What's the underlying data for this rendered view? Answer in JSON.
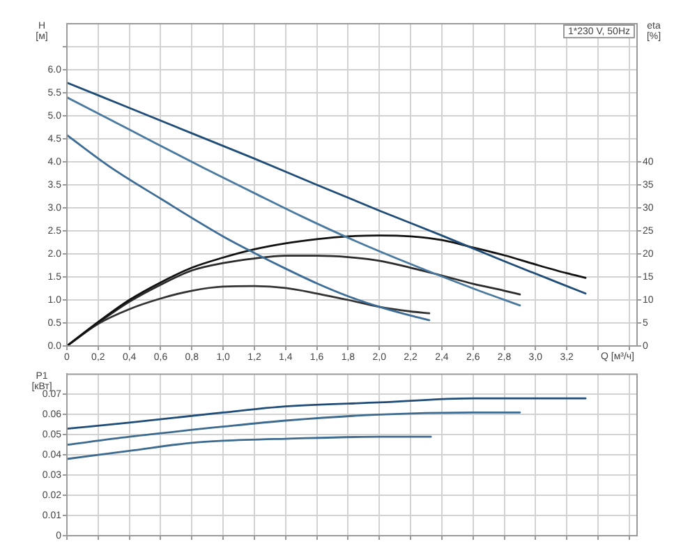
{
  "chart_data": [
    {
      "type": "line",
      "xlabel": "Q [м³/ч]",
      "ylabel": "H [м]",
      "y2label": "eta [%]",
      "annotations": [
        "1*230 V, 50Hz"
      ],
      "xlim": [
        0,
        3.65
      ],
      "xticks": [
        0,
        {
          "value": 0.2,
          "label": "0,2"
        },
        {
          "value": 0.4,
          "label": "0,4"
        },
        {
          "value": 0.6,
          "label": "0,6"
        },
        {
          "value": 0.8,
          "label": "0,8"
        },
        {
          "value": 1,
          "label": "1,0"
        },
        {
          "value": 1.2,
          "label": "1,2"
        },
        {
          "value": 1.4,
          "label": "1,4"
        },
        {
          "value": 1.6,
          "label": "1,6"
        },
        {
          "value": 1.8,
          "label": "1,8"
        },
        {
          "value": 2,
          "label": "2,0"
        },
        {
          "value": 2.2,
          "label": "2,2"
        },
        {
          "value": 2.4,
          "label": "2,4"
        },
        {
          "value": 2.6,
          "label": "2,6"
        },
        {
          "value": 2.8,
          "label": "2,8"
        },
        {
          "value": 3,
          "label": "3,0"
        },
        {
          "value": 3.2,
          "label": "3,2"
        },
        {
          "value": 3.4,
          "label": null
        },
        {
          "value": 3.6,
          "label": null
        }
      ],
      "ylim": [
        0,
        7
      ],
      "yticks": [
        {
          "value": 0,
          "label": "0.0"
        },
        {
          "value": 0.5,
          "label": "0.5"
        },
        {
          "value": 1,
          "label": "1.0"
        },
        {
          "value": 1.5,
          "label": "1.5"
        },
        {
          "value": 2,
          "label": "2.0"
        },
        {
          "value": 2.5,
          "label": "2.5"
        },
        {
          "value": 3,
          "label": "3.0"
        },
        {
          "value": 3.5,
          "label": "3.5"
        },
        {
          "value": 4,
          "label": "4.0"
        },
        {
          "value": 4.5,
          "label": "4.5"
        },
        {
          "value": 5,
          "label": "5.0"
        },
        {
          "value": 5.5,
          "label": "5.5"
        },
        {
          "value": 6,
          "label": "6.0"
        },
        {
          "value": 6.5,
          "label": null
        }
      ],
      "y2lim": [
        0,
        70
      ],
      "y2ticks": [
        0,
        5,
        10,
        15,
        20,
        25,
        30,
        35,
        40
      ],
      "grid": true,
      "series": [
        {
          "color": "#1f4d78",
          "x": [
            0,
            0.4,
            0.8,
            1.2,
            1.6,
            2.0,
            2.4,
            2.8,
            3.32
          ],
          "values": [
            5.72,
            5.17,
            4.62,
            4.07,
            3.5,
            2.94,
            2.4,
            1.84,
            1.14
          ]
        },
        {
          "color": "#4a7aa0",
          "x": [
            0,
            0.4,
            0.88,
            1.2,
            1.5,
            1.8,
            2.2,
            2.6,
            2.9
          ],
          "values": [
            5.4,
            4.7,
            3.86,
            3.32,
            2.82,
            2.35,
            1.78,
            1.25,
            0.88
          ]
        },
        {
          "color": "#3d6d96",
          "x": [
            0,
            0.28,
            0.6,
            1.0,
            1.2,
            1.4,
            1.6,
            1.8,
            2.0,
            2.2,
            2.32
          ],
          "values": [
            4.58,
            3.88,
            3.2,
            2.38,
            2.02,
            1.68,
            1.36,
            1.08,
            0.85,
            0.66,
            0.56
          ]
        },
        {
          "color": "#111111",
          "axis": "y2",
          "x": [
            0,
            0.2,
            0.4,
            0.6,
            0.8,
            1.0,
            1.2,
            1.4,
            1.6,
            1.8,
            2.0,
            2.2,
            2.4,
            2.6,
            2.8,
            3.0,
            3.2,
            3.32
          ],
          "values": [
            0,
            5.2,
            10.0,
            13.8,
            17.0,
            19.2,
            21.0,
            22.3,
            23.2,
            23.8,
            24.0,
            23.8,
            23.0,
            21.4,
            19.7,
            17.7,
            15.8,
            14.8
          ]
        },
        {
          "color": "#2b2b2b",
          "axis": "y2",
          "x": [
            0,
            0.2,
            0.4,
            0.6,
            0.8,
            1.0,
            1.2,
            1.4,
            1.6,
            1.8,
            2.0,
            2.2,
            2.4,
            2.6,
            2.8,
            2.9
          ],
          "values": [
            0,
            5.0,
            9.6,
            13.3,
            16.4,
            18.0,
            19.0,
            19.6,
            19.6,
            19.3,
            18.5,
            17.0,
            15.3,
            13.5,
            12.0,
            11.2
          ]
        },
        {
          "color": "#333333",
          "axis": "y2",
          "x": [
            0,
            0.2,
            0.4,
            0.6,
            0.8,
            1.0,
            1.2,
            1.4,
            1.6,
            1.8,
            2.0,
            2.2,
            2.32
          ],
          "values": [
            0,
            4.8,
            8.0,
            10.3,
            12.0,
            12.9,
            13.0,
            12.6,
            11.4,
            10.0,
            8.5,
            7.5,
            7.1
          ]
        }
      ]
    },
    {
      "type": "line",
      "ylabel": "P1 [кВт]",
      "tick_labels": "y",
      "xlim": [
        0,
        3.65
      ],
      "xticks": [
        0,
        0.2,
        0.4,
        0.6,
        0.8,
        1,
        1.2,
        1.4,
        1.6,
        1.8,
        2,
        2.2,
        2.4,
        2.6,
        2.8,
        3,
        3.2,
        3.4,
        3.6
      ],
      "ylim": [
        0,
        0.08
      ],
      "yticks": [
        0,
        0.01,
        0.02,
        0.03,
        0.04,
        0.05,
        0.06,
        0.07
      ],
      "grid": true,
      "series": [
        {
          "color": "#1f4d78",
          "x": [
            0,
            0.4,
            1.0,
            1.4,
            2.0,
            2.6,
            3.0,
            3.32
          ],
          "values": [
            0.053,
            0.056,
            0.061,
            0.064,
            0.066,
            0.068,
            0.068,
            0.068
          ]
        },
        {
          "color": "#3d6a8f",
          "x": [
            0,
            0.4,
            1.0,
            1.4,
            2.0,
            2.6,
            2.9
          ],
          "values": [
            0.045,
            0.049,
            0.054,
            0.057,
            0.06,
            0.061,
            0.061
          ]
        },
        {
          "color": "#3d6a8f",
          "x": [
            0,
            0.4,
            0.8,
            1.0,
            1.4,
            2.0,
            2.33
          ],
          "values": [
            0.038,
            0.042,
            0.046,
            0.047,
            0.048,
            0.049,
            0.049
          ]
        }
      ]
    }
  ]
}
